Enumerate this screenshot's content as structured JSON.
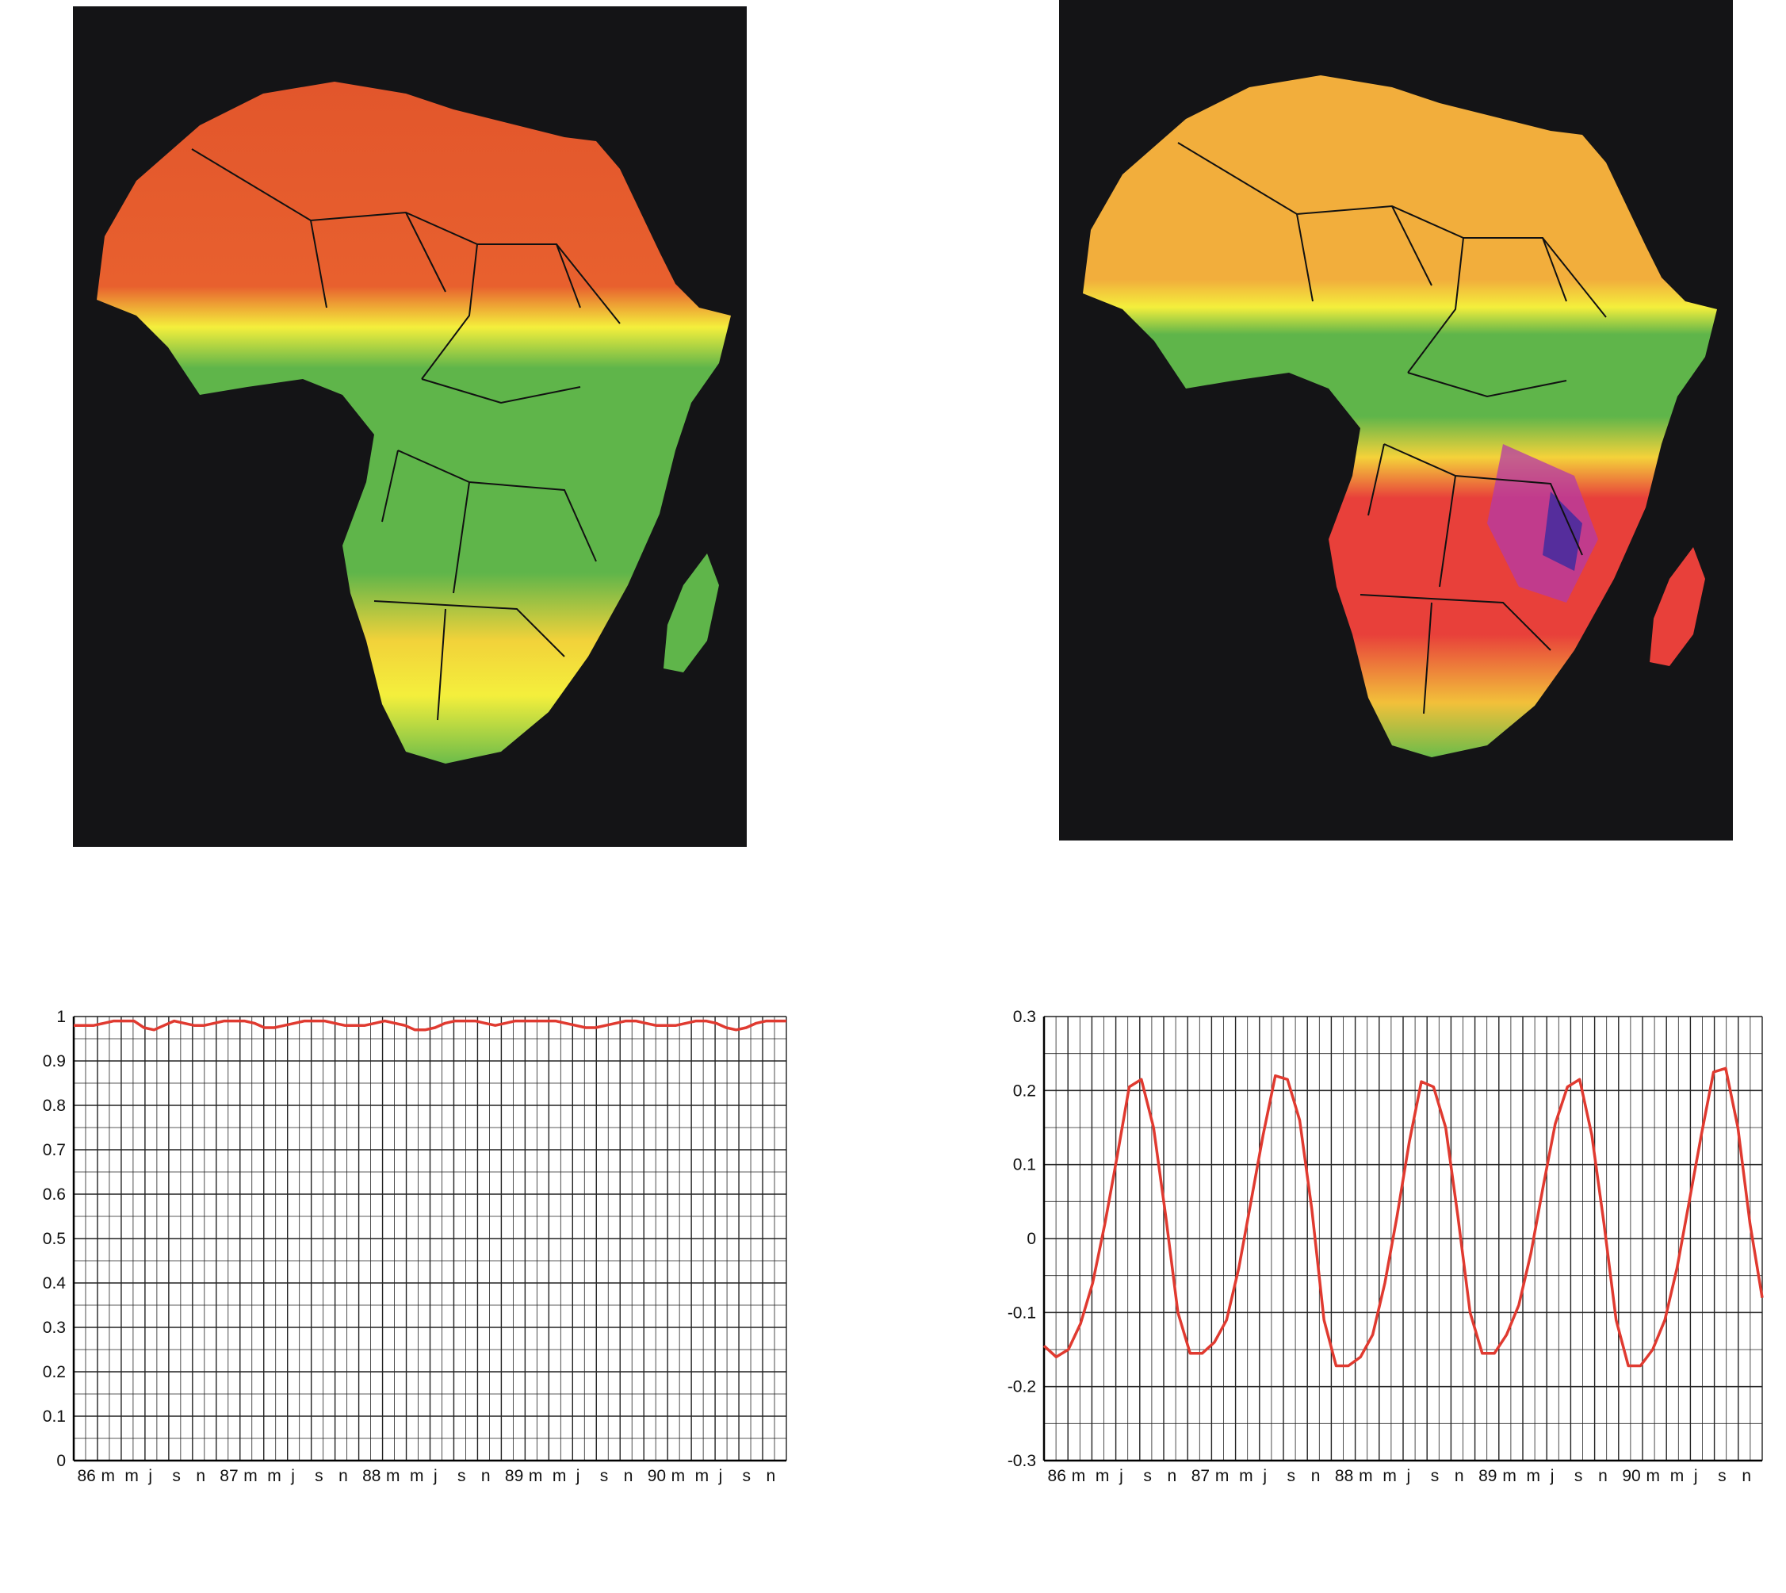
{
  "maps": [
    {
      "name": "left-map",
      "palette": [
        "#e2562c",
        "#f2a83a",
        "#f4ef3c",
        "#5fb54a"
      ]
    },
    {
      "name": "right-map",
      "palette": [
        "#f2ae3c",
        "#f4ef3c",
        "#5fb54a",
        "#e8403a",
        "#b43aa8",
        "#3a2aa0"
      ]
    }
  ],
  "chart_data": [
    {
      "type": "line",
      "title": "",
      "xlabel": "",
      "ylabel": "",
      "x_tick_labels": [
        "86",
        "m",
        "m",
        "j",
        "s",
        "n",
        "87",
        "m",
        "m",
        "j",
        "s",
        "n",
        "88",
        "m",
        "m",
        "j",
        "s",
        "n",
        "89",
        "m",
        "m",
        "j",
        "s",
        "n",
        "90",
        "m",
        "m",
        "j",
        "s",
        "n"
      ],
      "y_ticks": [
        "0",
        "0.1",
        "0.2",
        "0.3",
        "0.4",
        "0.5",
        "0.6",
        "0.7",
        "0.8",
        "0.9",
        "1"
      ],
      "ylim": [
        0,
        1
      ],
      "grid": true,
      "line_color": "#e03a30",
      "series": [
        {
          "values": [
            0.98,
            0.98,
            0.98,
            0.985,
            0.99,
            0.99,
            0.99,
            0.975,
            0.97,
            0.98,
            0.99,
            0.985,
            0.98,
            0.98,
            0.985,
            0.99,
            0.99,
            0.99,
            0.985,
            0.975,
            0.975,
            0.98,
            0.985,
            0.99,
            0.99,
            0.99,
            0.985,
            0.98,
            0.98,
            0.98,
            0.985,
            0.99,
            0.985,
            0.98,
            0.97,
            0.97,
            0.975,
            0.985,
            0.99,
            0.99,
            0.99,
            0.985,
            0.98,
            0.985,
            0.99,
            0.99,
            0.99,
            0.99,
            0.99,
            0.985,
            0.98,
            0.975,
            0.975,
            0.98,
            0.985,
            0.99,
            0.99,
            0.985,
            0.98,
            0.98,
            0.98,
            0.985,
            0.99,
            0.99,
            0.985,
            0.975,
            0.97,
            0.975,
            0.985,
            0.99,
            0.99,
            0.99
          ]
        }
      ]
    },
    {
      "type": "line",
      "title": "",
      "xlabel": "",
      "ylabel": "",
      "x_tick_labels": [
        "86",
        "m",
        "m",
        "j",
        "s",
        "n",
        "87",
        "m",
        "m",
        "j",
        "s",
        "n",
        "88",
        "m",
        "m",
        "j",
        "s",
        "n",
        "89",
        "m",
        "m",
        "j",
        "s",
        "n",
        "90",
        "m",
        "m",
        "j",
        "s",
        "n"
      ],
      "y_ticks": [
        "-0.3",
        "-0.2",
        "-0.1",
        "0",
        "0.1",
        "0.2",
        "0.3"
      ],
      "ylim": [
        -0.3,
        0.3
      ],
      "grid": true,
      "line_color": "#e03a30",
      "series": [
        {
          "values": [
            -0.145,
            -0.16,
            -0.15,
            -0.115,
            -0.06,
            0.02,
            0.11,
            0.205,
            0.215,
            0.15,
            0.03,
            -0.1,
            -0.155,
            -0.155,
            -0.14,
            -0.11,
            -0.04,
            0.05,
            0.14,
            0.22,
            0.215,
            0.16,
            0.04,
            -0.11,
            -0.172,
            -0.172,
            -0.16,
            -0.13,
            -0.06,
            0.03,
            0.13,
            0.212,
            0.205,
            0.15,
            0.03,
            -0.1,
            -0.155,
            -0.155,
            -0.13,
            -0.09,
            -0.02,
            0.07,
            0.155,
            0.205,
            0.215,
            0.14,
            0.02,
            -0.11,
            -0.172,
            -0.172,
            -0.15,
            -0.11,
            -0.04,
            0.05,
            0.14,
            0.225,
            0.23,
            0.15,
            0.02,
            -0.08
          ]
        }
      ]
    }
  ]
}
